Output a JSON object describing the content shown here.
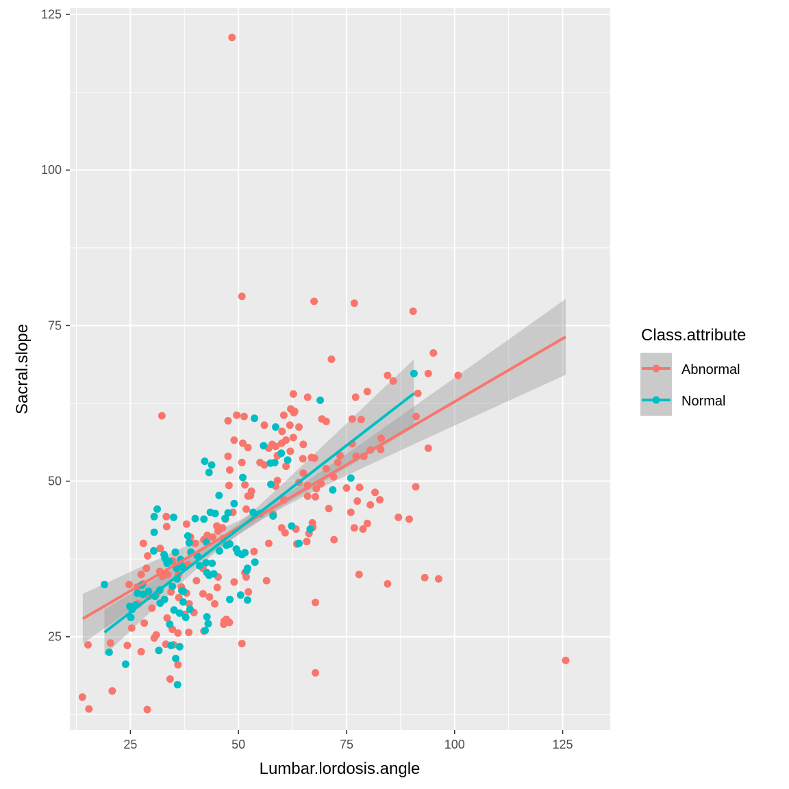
{
  "chart_data": {
    "type": "scatter",
    "title": "",
    "xlabel": "Lumbar.lordosis.angle",
    "ylabel": "Sacral.slope",
    "xlim": [
      11,
      136
    ],
    "ylim": [
      10,
      126
    ],
    "x_ticks": [
      25,
      50,
      75,
      100,
      125
    ],
    "y_ticks": [
      25,
      50,
      75,
      100,
      125
    ],
    "grid": true,
    "legend": {
      "title": "Class.attribute",
      "placement": "right",
      "entries": [
        "Abnormal",
        "Normal"
      ]
    },
    "series": [
      {
        "name": "Abnormal",
        "color": "#F8766D",
        "points": [
          [
            48.5,
            121.3
          ],
          [
            50.8,
            79.7
          ],
          [
            67.5,
            78.9
          ],
          [
            76.8,
            78.6
          ],
          [
            90.4,
            77.3
          ],
          [
            95.1,
            70.6
          ],
          [
            71.5,
            69.6
          ],
          [
            100.8,
            67.0
          ],
          [
            93.9,
            67.3
          ],
          [
            84.5,
            67.0
          ],
          [
            85.8,
            66.1
          ],
          [
            77.1,
            63.5
          ],
          [
            91.5,
            64.1
          ],
          [
            79.8,
            64.4
          ],
          [
            66.0,
            63.5
          ],
          [
            62.7,
            64.0
          ],
          [
            62.1,
            61.6
          ],
          [
            61.9,
            59.0
          ],
          [
            63.0,
            61.2
          ],
          [
            62.8,
            61.0
          ],
          [
            60.5,
            60.6
          ],
          [
            49.6,
            60.6
          ],
          [
            51.3,
            60.4
          ],
          [
            47.6,
            59.7
          ],
          [
            32.3,
            60.5
          ],
          [
            76.3,
            60.0
          ],
          [
            78.4,
            59.9
          ],
          [
            91.1,
            60.4
          ],
          [
            70.3,
            59.6
          ],
          [
            69.3,
            60.0
          ],
          [
            56.0,
            59.0
          ],
          [
            64.0,
            58.7
          ],
          [
            60.1,
            58.0
          ],
          [
            62.7,
            57.0
          ],
          [
            61.0,
            56.6
          ],
          [
            65.0,
            55.9
          ],
          [
            60.0,
            56.1
          ],
          [
            57.8,
            55.9
          ],
          [
            58.6,
            55.6
          ],
          [
            51.0,
            56.1
          ],
          [
            49.0,
            56.6
          ],
          [
            76.3,
            56.0
          ],
          [
            83.0,
            56.9
          ],
          [
            93.9,
            55.3
          ],
          [
            52.2,
            55.4
          ],
          [
            57.0,
            55.3
          ],
          [
            62.0,
            54.8
          ],
          [
            59.0,
            54.1
          ],
          [
            66.9,
            53.8
          ],
          [
            64.9,
            53.6
          ],
          [
            67.6,
            53.7
          ],
          [
            73.0,
            53.0
          ],
          [
            77.2,
            54.0
          ],
          [
            82.9,
            55.1
          ],
          [
            80.5,
            55.0
          ],
          [
            79.0,
            54.0
          ],
          [
            50.8,
            53.0
          ],
          [
            47.6,
            54.0
          ],
          [
            55.0,
            53.0
          ],
          [
            56.0,
            52.6
          ],
          [
            61.0,
            52.4
          ],
          [
            65.0,
            51.3
          ],
          [
            70.3,
            52.0
          ],
          [
            73.5,
            54.1
          ],
          [
            48.0,
            51.8
          ],
          [
            51.5,
            49.4
          ],
          [
            53.0,
            48.4
          ],
          [
            58.6,
            49.2
          ],
          [
            59.0,
            50.1
          ],
          [
            64.0,
            49.8
          ],
          [
            66.0,
            49.3
          ],
          [
            68.0,
            48.8
          ],
          [
            69.1,
            49.6
          ],
          [
            72.0,
            50.7
          ],
          [
            60.5,
            47.0
          ],
          [
            66.0,
            47.6
          ],
          [
            67.8,
            47.5
          ],
          [
            80.5,
            46.2
          ],
          [
            81.6,
            48.2
          ],
          [
            78.0,
            49.0
          ],
          [
            87.0,
            44.2
          ],
          [
            89.5,
            43.9
          ],
          [
            91.0,
            49.1
          ],
          [
            47.8,
            49.3
          ],
          [
            52.2,
            47.6
          ],
          [
            48.7,
            45.0
          ],
          [
            47.0,
            43.9
          ],
          [
            46.5,
            40.8
          ],
          [
            45.3,
            42.0
          ],
          [
            46.3,
            42.5
          ],
          [
            40.0,
            40.0
          ],
          [
            42.0,
            40.6
          ],
          [
            42.8,
            41.3
          ],
          [
            44.0,
            41.0
          ],
          [
            45.0,
            42.8
          ],
          [
            38.0,
            43.1
          ],
          [
            38.9,
            41.0
          ],
          [
            33.3,
            44.3
          ],
          [
            33.4,
            42.7
          ],
          [
            31.9,
            39.2
          ],
          [
            35.4,
            38.5
          ],
          [
            34.8,
            37.2
          ],
          [
            38.3,
            36.6
          ],
          [
            41.8,
            36.0
          ],
          [
            40.3,
            34.0
          ],
          [
            37.0,
            36.5
          ],
          [
            36.1,
            35.0
          ],
          [
            33.6,
            35.0
          ],
          [
            32.4,
            34.7
          ],
          [
            31.8,
            35.5
          ],
          [
            29.0,
            38.0
          ],
          [
            28.0,
            40.0
          ],
          [
            28.7,
            36.0
          ],
          [
            27.5,
            35.0
          ],
          [
            26.6,
            33.0
          ],
          [
            24.7,
            33.4
          ],
          [
            28.0,
            33.5
          ],
          [
            29.3,
            31.5
          ],
          [
            31.0,
            31.8
          ],
          [
            34.4,
            32.2
          ],
          [
            36.8,
            33.0
          ],
          [
            38.0,
            32.0
          ],
          [
            38.6,
            30.3
          ],
          [
            36.2,
            31.3
          ],
          [
            37.6,
            28.6
          ],
          [
            33.5,
            28.0
          ],
          [
            30.0,
            29.6
          ],
          [
            28.2,
            27.2
          ],
          [
            25.3,
            26.4
          ],
          [
            26.8,
            30.3
          ],
          [
            30.5,
            24.8
          ],
          [
            31.0,
            25.3
          ],
          [
            33.2,
            23.8
          ],
          [
            35.0,
            23.7
          ],
          [
            34.7,
            26.2
          ],
          [
            36.0,
            25.6
          ],
          [
            38.5,
            25.7
          ],
          [
            42.0,
            25.9
          ],
          [
            46.7,
            27.5
          ],
          [
            47.2,
            27.8
          ],
          [
            47.9,
            27.3
          ],
          [
            46.6,
            27.0
          ],
          [
            50.8,
            23.9
          ],
          [
            44.5,
            30.3
          ],
          [
            49.0,
            33.8
          ],
          [
            45.3,
            34.6
          ],
          [
            45.1,
            32.9
          ],
          [
            41.8,
            31.9
          ],
          [
            43.3,
            31.4
          ],
          [
            39.7,
            28.9
          ],
          [
            36.0,
            20.5
          ],
          [
            34.2,
            18.2
          ],
          [
            24.3,
            23.6
          ],
          [
            27.5,
            22.6
          ],
          [
            20.4,
            24.0
          ],
          [
            20.8,
            16.3
          ],
          [
            15.2,
            23.7
          ],
          [
            15.4,
            13.4
          ],
          [
            13.9,
            15.3
          ],
          [
            28.9,
            13.3
          ],
          [
            53.6,
            38.7
          ],
          [
            58.0,
            44.7
          ],
          [
            60.0,
            42.5
          ],
          [
            63.3,
            42.3
          ],
          [
            63.5,
            39.9
          ],
          [
            65.8,
            40.3
          ],
          [
            67.1,
            43.3
          ],
          [
            70.9,
            45.6
          ],
          [
            72.1,
            40.6
          ],
          [
            75.0,
            48.9
          ],
          [
            76.0,
            45.0
          ],
          [
            76.8,
            42.5
          ],
          [
            77.5,
            46.8
          ],
          [
            78.8,
            42.3
          ],
          [
            79.8,
            43.2
          ],
          [
            82.7,
            47.0
          ],
          [
            84.5,
            33.5
          ],
          [
            93.1,
            34.5
          ],
          [
            96.3,
            34.3
          ],
          [
            77.9,
            35.0
          ],
          [
            67.8,
            30.5
          ],
          [
            67.8,
            19.2
          ],
          [
            56.5,
            34.0
          ],
          [
            52.3,
            32.2
          ],
          [
            51.8,
            34.6
          ],
          [
            51.5,
            35.3
          ],
          [
            57.0,
            40.0
          ],
          [
            60.8,
            41.7
          ],
          [
            66.3,
            41.6
          ],
          [
            67.2,
            42.6
          ],
          [
            125.7,
            21.2
          ],
          [
            51.8,
            45.5
          ],
          [
            52.8,
            47.7
          ]
        ]
      },
      {
        "name": "Normal",
        "color": "#00BFC4",
        "points": [
          [
            90.6,
            67.3
          ],
          [
            68.9,
            63.0
          ],
          [
            53.7,
            60.1
          ],
          [
            58.6,
            58.7
          ],
          [
            55.8,
            55.7
          ],
          [
            59.9,
            54.5
          ],
          [
            42.2,
            53.2
          ],
          [
            43.8,
            52.6
          ],
          [
            43.2,
            51.4
          ],
          [
            51.0,
            50.6
          ],
          [
            57.5,
            49.5
          ],
          [
            58.4,
            53.0
          ],
          [
            57.4,
            52.9
          ],
          [
            61.4,
            53.4
          ],
          [
            76.0,
            50.5
          ],
          [
            45.5,
            47.7
          ],
          [
            49.0,
            46.4
          ],
          [
            53.4,
            45.0
          ],
          [
            55.0,
            44.8
          ],
          [
            58.0,
            44.4
          ],
          [
            44.6,
            44.8
          ],
          [
            47.6,
            44.9
          ],
          [
            46.9,
            44.0
          ],
          [
            43.5,
            45.0
          ],
          [
            42.0,
            43.9
          ],
          [
            40.0,
            44.0
          ],
          [
            35.0,
            44.2
          ],
          [
            31.2,
            45.5
          ],
          [
            30.5,
            44.3
          ],
          [
            30.5,
            41.8
          ],
          [
            30.4,
            38.8
          ],
          [
            33.0,
            37.6
          ],
          [
            33.5,
            36.8
          ],
          [
            34.0,
            37.1
          ],
          [
            35.4,
            38.6
          ],
          [
            32.8,
            38.2
          ],
          [
            37.0,
            36.2
          ],
          [
            39.0,
            38.6
          ],
          [
            40.5,
            38.0
          ],
          [
            41.0,
            36.4
          ],
          [
            42.5,
            36.9
          ],
          [
            42.7,
            35.3
          ],
          [
            43.2,
            34.9
          ],
          [
            44.3,
            35.1
          ],
          [
            43.9,
            36.8
          ],
          [
            47.2,
            39.7
          ],
          [
            48.0,
            39.9
          ],
          [
            49.5,
            39.1
          ],
          [
            50.8,
            38.2
          ],
          [
            51.5,
            38.5
          ],
          [
            51.9,
            35.6
          ],
          [
            53.8,
            37.0
          ],
          [
            45.6,
            38.8
          ],
          [
            42.6,
            40.2
          ],
          [
            38.6,
            40.1
          ],
          [
            38.3,
            41.2
          ],
          [
            36.6,
            37.4
          ],
          [
            35.7,
            36.0
          ],
          [
            35.8,
            34.3
          ],
          [
            34.7,
            33.1
          ],
          [
            32.9,
            31.0
          ],
          [
            31.8,
            32.5
          ],
          [
            30.7,
            31.5
          ],
          [
            29.2,
            32.3
          ],
          [
            27.9,
            31.8
          ],
          [
            27.6,
            33.3
          ],
          [
            26.6,
            32.0
          ],
          [
            25.4,
            29.4
          ],
          [
            25.1,
            28.1
          ],
          [
            26.2,
            30.1
          ],
          [
            24.9,
            29.9
          ],
          [
            19.0,
            33.4
          ],
          [
            20.1,
            22.5
          ],
          [
            23.9,
            20.6
          ],
          [
            31.9,
            30.4
          ],
          [
            34.1,
            27.0
          ],
          [
            35.1,
            29.3
          ],
          [
            36.4,
            28.8
          ],
          [
            37.8,
            28.1
          ],
          [
            37.2,
            30.6
          ],
          [
            38.8,
            29.4
          ],
          [
            36.9,
            32.4
          ],
          [
            37.3,
            32.3
          ],
          [
            34.4,
            23.6
          ],
          [
            36.4,
            23.4
          ],
          [
            35.5,
            21.5
          ],
          [
            31.6,
            22.8
          ],
          [
            35.9,
            17.3
          ],
          [
            42.3,
            26.0
          ],
          [
            42.7,
            28.2
          ],
          [
            43.0,
            27.1
          ],
          [
            48.0,
            31.0
          ],
          [
            50.5,
            31.7
          ],
          [
            52.1,
            30.9
          ],
          [
            52.1,
            36.0
          ],
          [
            49.9,
            38.5
          ],
          [
            64.0,
            40.0
          ],
          [
            62.3,
            42.8
          ],
          [
            66.6,
            42.3
          ],
          [
            71.8,
            48.6
          ]
        ]
      }
    ],
    "trend_lines": [
      {
        "series": "Abnormal",
        "x": [
          14,
          125.7
        ],
        "y": [
          27.9,
          73.2
        ],
        "ci_low_ends": [
          24.0,
          67.2
        ],
        "ci_high_ends": [
          31.9,
          79.3
        ]
      },
      {
        "series": "Normal",
        "x": [
          19,
          90.6
        ],
        "y": [
          25.7,
          64.1
        ],
        "ci_low_ends": [
          22.1,
          58.6
        ],
        "ci_high_ends": [
          29.4,
          69.6
        ]
      }
    ]
  }
}
